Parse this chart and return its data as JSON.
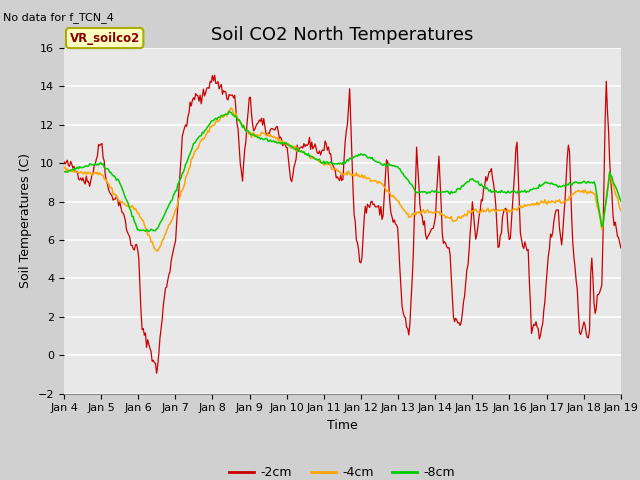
{
  "title": "Soil CO2 North Temperatures",
  "no_data_text": "No data for f_TCN_4",
  "xlabel": "Time",
  "ylabel": "Soil Temperatures (C)",
  "ylim": [
    -2,
    16
  ],
  "yticks": [
    -2,
    0,
    2,
    4,
    6,
    8,
    10,
    12,
    14,
    16
  ],
  "xtick_labels": [
    "Jan 4",
    "Jan 5",
    "Jan 6",
    "Jan 7",
    "Jan 8",
    "Jan 9",
    "Jan 10",
    "Jan 11",
    "Jan 12",
    "Jan 13",
    "Jan 14",
    "Jan 15",
    "Jan 16",
    "Jan 17",
    "Jan 18",
    "Jan 19"
  ],
  "legend_label": "VR_soilco2",
  "line_colors": [
    "#cc0000",
    "#ffa500",
    "#00cc00"
  ],
  "line_labels": [
    "-2cm",
    "-4cm",
    "-8cm"
  ],
  "fig_bg_color": "#d0d0d0",
  "plot_bg_color": "#e8e8e8",
  "title_fontsize": 13,
  "label_fontsize": 9,
  "tick_fontsize": 8,
  "red_waypoints": [
    [
      0.0,
      10.0
    ],
    [
      0.25,
      9.8
    ],
    [
      0.5,
      9.2
    ],
    [
      0.7,
      9.0
    ],
    [
      1.0,
      11.2
    ],
    [
      1.2,
      8.5
    ],
    [
      1.5,
      8.0
    ],
    [
      1.8,
      5.8
    ],
    [
      2.0,
      5.5
    ],
    [
      2.1,
      1.3
    ],
    [
      2.3,
      0.5
    ],
    [
      2.5,
      -0.9
    ],
    [
      2.7,
      3.0
    ],
    [
      3.0,
      6.0
    ],
    [
      3.2,
      11.5
    ],
    [
      3.5,
      13.5
    ],
    [
      3.7,
      13.3
    ],
    [
      4.0,
      14.5
    ],
    [
      4.2,
      14.0
    ],
    [
      4.4,
      13.5
    ],
    [
      4.6,
      13.5
    ],
    [
      4.8,
      9.0
    ],
    [
      5.0,
      13.5
    ],
    [
      5.1,
      11.8
    ],
    [
      5.3,
      12.2
    ],
    [
      5.5,
      11.5
    ],
    [
      5.7,
      12.0
    ],
    [
      5.9,
      11.0
    ],
    [
      6.0,
      11.0
    ],
    [
      6.1,
      9.0
    ],
    [
      6.3,
      10.5
    ],
    [
      6.5,
      11.0
    ],
    [
      6.7,
      11.0
    ],
    [
      6.9,
      10.5
    ],
    [
      7.1,
      11.0
    ],
    [
      7.3,
      9.5
    ],
    [
      7.5,
      9.0
    ],
    [
      7.7,
      13.8
    ],
    [
      7.8,
      7.7
    ],
    [
      8.0,
      4.5
    ],
    [
      8.1,
      7.5
    ],
    [
      8.3,
      8.0
    ],
    [
      8.5,
      7.5
    ],
    [
      8.6,
      7.3
    ],
    [
      8.7,
      10.7
    ],
    [
      8.8,
      7.3
    ],
    [
      9.0,
      6.5
    ],
    [
      9.1,
      2.5
    ],
    [
      9.3,
      1.0
    ],
    [
      9.4,
      4.5
    ],
    [
      9.5,
      10.8
    ],
    [
      9.6,
      7.5
    ],
    [
      9.8,
      6.0
    ],
    [
      10.0,
      7.0
    ],
    [
      10.1,
      10.5
    ],
    [
      10.2,
      6.0
    ],
    [
      10.4,
      5.5
    ],
    [
      10.5,
      1.7
    ],
    [
      10.7,
      1.7
    ],
    [
      10.9,
      5.0
    ],
    [
      11.0,
      8.0
    ],
    [
      11.1,
      6.0
    ],
    [
      11.3,
      8.5
    ],
    [
      11.5,
      10.0
    ],
    [
      11.6,
      8.5
    ],
    [
      11.7,
      5.5
    ],
    [
      11.9,
      8.0
    ],
    [
      12.0,
      5.7
    ],
    [
      12.1,
      8.3
    ],
    [
      12.2,
      11.5
    ],
    [
      12.3,
      6.0
    ],
    [
      12.5,
      5.5
    ],
    [
      12.6,
      0.9
    ],
    [
      12.7,
      1.7
    ],
    [
      12.8,
      1.0
    ],
    [
      12.85,
      0.9
    ],
    [
      12.9,
      2.0
    ],
    [
      13.0,
      4.0
    ],
    [
      13.1,
      6.0
    ],
    [
      13.3,
      8.0
    ],
    [
      13.4,
      5.5
    ],
    [
      13.5,
      8.3
    ],
    [
      13.6,
      11.5
    ],
    [
      13.7,
      6.0
    ],
    [
      13.8,
      4.0
    ],
    [
      13.9,
      0.9
    ],
    [
      14.0,
      1.7
    ],
    [
      14.1,
      1.0
    ],
    [
      14.15,
      0.9
    ],
    [
      14.2,
      5.5
    ],
    [
      14.3,
      2.0
    ],
    [
      14.5,
      4.0
    ],
    [
      14.6,
      14.8
    ],
    [
      14.7,
      10.0
    ],
    [
      14.8,
      7.0
    ],
    [
      15.0,
      5.8
    ]
  ],
  "orange_waypoints": [
    [
      0.0,
      9.7
    ],
    [
      0.5,
      9.5
    ],
    [
      1.0,
      9.5
    ],
    [
      1.5,
      8.0
    ],
    [
      2.0,
      7.5
    ],
    [
      2.5,
      5.3
    ],
    [
      3.0,
      7.5
    ],
    [
      3.5,
      10.5
    ],
    [
      4.0,
      12.0
    ],
    [
      4.5,
      12.8
    ],
    [
      5.0,
      11.5
    ],
    [
      5.5,
      11.5
    ],
    [
      6.0,
      11.0
    ],
    [
      6.5,
      10.5
    ],
    [
      7.0,
      10.0
    ],
    [
      7.5,
      9.5
    ],
    [
      8.0,
      9.3
    ],
    [
      8.5,
      9.0
    ],
    [
      9.0,
      8.0
    ],
    [
      9.3,
      7.2
    ],
    [
      9.5,
      7.4
    ],
    [
      10.0,
      7.5
    ],
    [
      10.5,
      7.0
    ],
    [
      11.0,
      7.5
    ],
    [
      11.5,
      7.5
    ],
    [
      12.0,
      7.5
    ],
    [
      12.5,
      7.8
    ],
    [
      13.0,
      8.0
    ],
    [
      13.3,
      8.0
    ],
    [
      13.5,
      8.0
    ],
    [
      13.8,
      8.5
    ],
    [
      14.0,
      8.5
    ],
    [
      14.3,
      8.5
    ],
    [
      14.5,
      6.5
    ],
    [
      14.7,
      9.5
    ],
    [
      15.0,
      7.5
    ]
  ],
  "green_waypoints": [
    [
      0.0,
      9.5
    ],
    [
      0.5,
      9.8
    ],
    [
      1.0,
      10.0
    ],
    [
      1.5,
      9.0
    ],
    [
      2.0,
      6.5
    ],
    [
      2.5,
      6.5
    ],
    [
      3.0,
      8.5
    ],
    [
      3.5,
      11.0
    ],
    [
      4.0,
      12.2
    ],
    [
      4.5,
      12.7
    ],
    [
      5.0,
      11.5
    ],
    [
      5.5,
      11.2
    ],
    [
      6.0,
      11.0
    ],
    [
      6.5,
      10.5
    ],
    [
      7.0,
      10.0
    ],
    [
      7.5,
      10.0
    ],
    [
      8.0,
      10.5
    ],
    [
      8.5,
      10.0
    ],
    [
      9.0,
      9.8
    ],
    [
      9.3,
      9.0
    ],
    [
      9.5,
      8.5
    ],
    [
      10.0,
      8.5
    ],
    [
      10.5,
      8.5
    ],
    [
      11.0,
      9.2
    ],
    [
      11.5,
      8.5
    ],
    [
      12.0,
      8.5
    ],
    [
      12.5,
      8.5
    ],
    [
      13.0,
      9.0
    ],
    [
      13.3,
      8.8
    ],
    [
      13.5,
      8.8
    ],
    [
      13.8,
      9.0
    ],
    [
      14.0,
      9.0
    ],
    [
      14.3,
      9.0
    ],
    [
      14.5,
      6.5
    ],
    [
      14.7,
      9.5
    ],
    [
      15.0,
      8.0
    ]
  ]
}
